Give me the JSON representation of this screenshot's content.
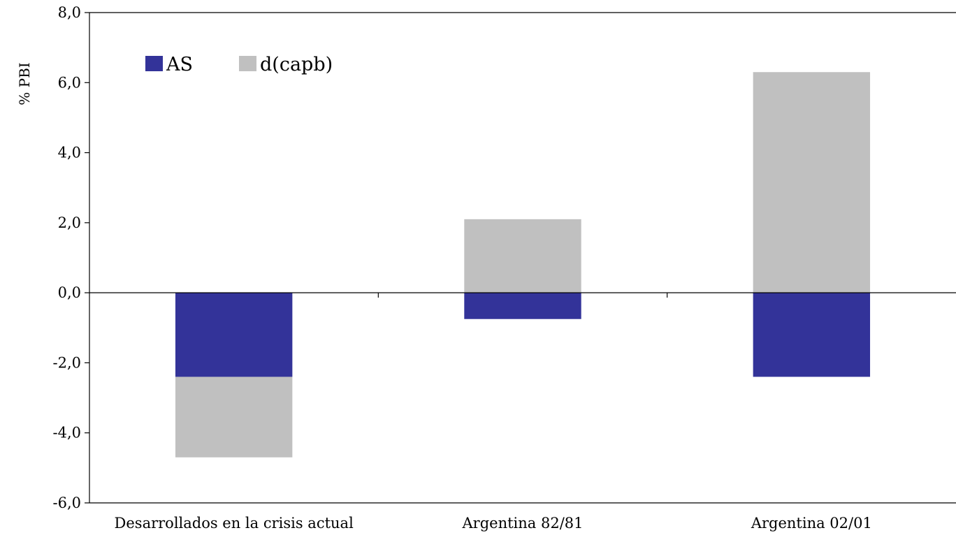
{
  "chart_data": {
    "type": "bar",
    "stacked": true,
    "categories": [
      "Desarrollados en la crisis actual",
      "Argentina 82/81",
      "Argentina 02/01"
    ],
    "series": [
      {
        "name": "AS",
        "color": "#333399",
        "values": [
          -2.4,
          -0.75,
          -2.4
        ]
      },
      {
        "name": "d(capb)",
        "color": "#c0c0c0",
        "values": [
          -2.3,
          2.1,
          6.3
        ]
      }
    ],
    "ylabel": "% PBI",
    "xlabel": "",
    "ylim": [
      -6.0,
      8.0
    ],
    "yticks": [
      "-6,0",
      "-4,0",
      "-2,0",
      "0,0",
      "2,0",
      "4,0",
      "6,0",
      "8,0"
    ],
    "ytick_values": [
      -6,
      -4,
      -2,
      0,
      2,
      4,
      6,
      8
    ],
    "grid": false,
    "legend_position": "top-left"
  }
}
